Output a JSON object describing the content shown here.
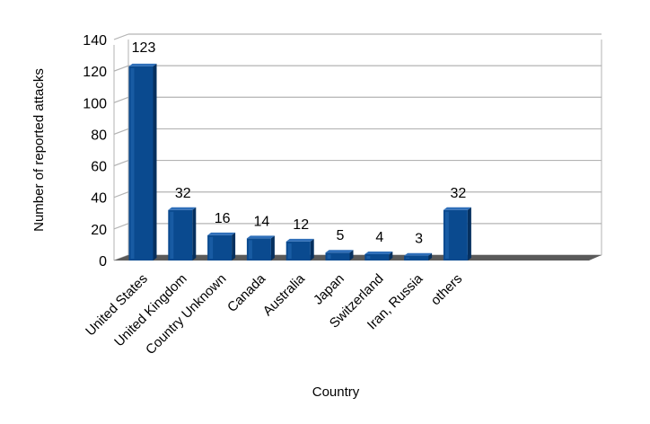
{
  "chart_data": {
    "type": "bar",
    "style": "3d-column",
    "title": "",
    "xlabel": "Country",
    "ylabel": "Number of reported attacks",
    "ylim": [
      0,
      140
    ],
    "ytick_step": 20,
    "yticks": [
      "0",
      "20",
      "40",
      "60",
      "80",
      "100",
      "120",
      "140"
    ],
    "grid": true,
    "legend": "none",
    "categories": [
      "United States",
      "United Kingdom",
      "Country Unknown",
      "Canada",
      "Australia",
      "Japan",
      "Switzerland",
      "Iran, Russia",
      "others"
    ],
    "values": [
      123,
      32,
      16,
      14,
      12,
      5,
      4,
      3,
      32
    ],
    "value_labels": [
      "123",
      "32",
      "16",
      "14",
      "12",
      "5",
      "4",
      "3",
      "32"
    ],
    "colors": {
      "bar_front": "#0a4a8f",
      "bar_top": "#2f6fb9",
      "bar_side": "#06305f",
      "grid": "#b3b3b3",
      "floor": "#5a5a5a"
    }
  }
}
